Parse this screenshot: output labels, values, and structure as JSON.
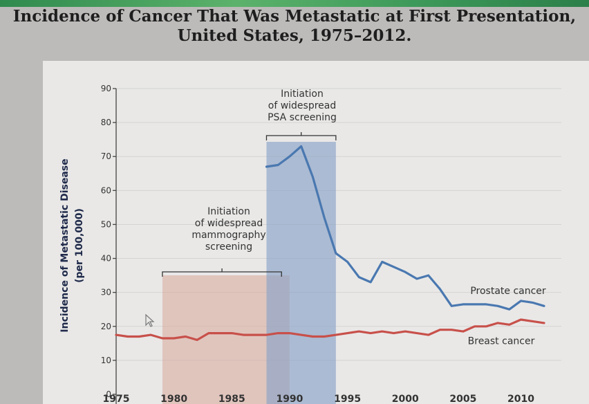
{
  "title_line1": "Incidence of Cancer That Was Metastatic at First Presentation,",
  "title_line2": "United States, 1975–2012.",
  "chart_data": {
    "type": "line",
    "title": "Incidence of Cancer That Was Metastatic at First Presentation, United States, 1975–2012.",
    "ylabel_line1": "Incidence of Metastatic Disease",
    "ylabel_line2": "(per 100,000)",
    "xlabel": "",
    "xlim": [
      1975,
      2012
    ],
    "ylim": [
      0,
      90
    ],
    "yticks": [
      0,
      10,
      20,
      30,
      40,
      50,
      60,
      70,
      80,
      90
    ],
    "xticks": [
      1975,
      1980,
      1985,
      1990,
      1995,
      2000,
      2005,
      2010
    ],
    "grid": true,
    "series": [
      {
        "name": "Prostate cancer",
        "color": "#4a78b0",
        "x": [
          1988,
          1989,
          1990,
          1991,
          1992,
          1993,
          1994,
          1995,
          1996,
          1997,
          1998,
          1999,
          2000,
          2001,
          2002,
          2003,
          2004,
          2005,
          2006,
          2007,
          2008,
          2009,
          2010,
          2011,
          2012
        ],
        "values": [
          67,
          67.5,
          70,
          73,
          64,
          52,
          41.5,
          39,
          34.5,
          33,
          39,
          37.5,
          36,
          34,
          35,
          31,
          26,
          26.5,
          26.5,
          26.5,
          26,
          25,
          27.5,
          27,
          26
        ]
      },
      {
        "name": "Breast cancer",
        "color": "#c8504a",
        "x": [
          1975,
          1976,
          1977,
          1978,
          1979,
          1980,
          1981,
          1982,
          1983,
          1984,
          1985,
          1986,
          1987,
          1988,
          1989,
          1990,
          1991,
          1992,
          1993,
          1994,
          1995,
          1996,
          1997,
          1998,
          1999,
          2000,
          2001,
          2002,
          2003,
          2004,
          2005,
          2006,
          2007,
          2008,
          2009,
          2010,
          2011,
          2012
        ],
        "values": [
          17.5,
          17,
          17,
          17.5,
          16.5,
          16.5,
          17,
          16,
          18,
          18,
          18,
          17.5,
          17.5,
          17.5,
          18,
          18,
          17.5,
          17,
          17,
          17.5,
          18,
          18.5,
          18,
          18.5,
          18,
          18.5,
          18,
          17.5,
          19,
          19,
          18.5,
          20,
          20,
          21,
          20.5,
          22,
          21.5,
          21
        ]
      }
    ],
    "shaded_regions": [
      {
        "name": "mammography-screening",
        "range": [
          1979,
          1990
        ],
        "color": "#d9a89b",
        "label": [
          "Initiation",
          "of widespread",
          "mammography",
          "screening"
        ]
      },
      {
        "name": "psa-screening",
        "range": [
          1988,
          1994
        ],
        "color": "#8aa3c8",
        "label": [
          "Initiation",
          "of widespread",
          "PSA screening"
        ]
      }
    ],
    "annotations": [
      "Prostate cancer",
      "Breast cancer"
    ]
  }
}
